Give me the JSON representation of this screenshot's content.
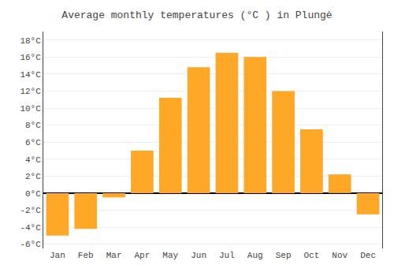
{
  "chart_data": {
    "type": "bar",
    "title": "Average monthly temperatures (°C ) in Plungė",
    "categories": [
      "Jan",
      "Feb",
      "Mar",
      "Apr",
      "May",
      "Jun",
      "Jul",
      "Aug",
      "Sep",
      "Oct",
      "Nov",
      "Dec"
    ],
    "values": [
      -5.0,
      -4.2,
      -0.5,
      5.0,
      11.2,
      14.8,
      16.5,
      16.0,
      12.0,
      7.5,
      2.2,
      -2.5
    ],
    "color": "#FFA726",
    "ylim": [
      -6.5,
      19
    ],
    "yticks": [
      {
        "value": -6,
        "label": "-6°C"
      },
      {
        "value": -4,
        "label": "-4°C"
      },
      {
        "value": -2,
        "label": "-2°C"
      },
      {
        "value": 0,
        "label": "0°C"
      },
      {
        "value": 2,
        "label": "2°C"
      },
      {
        "value": 4,
        "label": "4°C"
      },
      {
        "value": 6,
        "label": "6°C"
      },
      {
        "value": 8,
        "label": "8°C"
      },
      {
        "value": 10,
        "label": "10°C"
      },
      {
        "value": 12,
        "label": "12°C"
      },
      {
        "value": 14,
        "label": "14°C"
      },
      {
        "value": 16,
        "label": "16°C"
      },
      {
        "value": 18,
        "label": "18°C"
      }
    ],
    "grid": true
  }
}
